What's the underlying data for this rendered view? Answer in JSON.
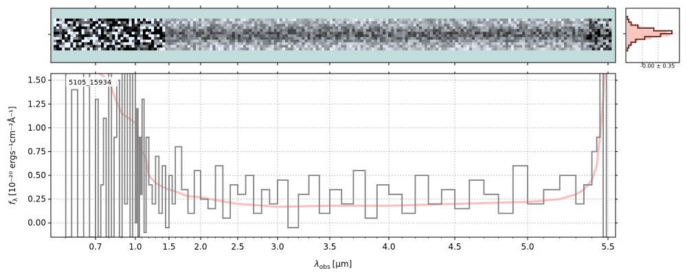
{
  "colors": {
    "twod_background": "#c3dcdc",
    "spectrum": "#808080",
    "model": "#ffb0b0",
    "model_dark": "#e88080",
    "histogram_light": "#f8b8b0",
    "histogram_dark": "#6b2a22",
    "grid": "#b0b0b0"
  },
  "chart_data": [
    {
      "type": "heatmap",
      "panel": "2D spectrum",
      "description_colormap": "bone-like, white to black on light teal background"
    },
    {
      "type": "bar",
      "panel": "cross-dispersion histogram",
      "annotation": "-0.00 ± 0.35",
      "legend": "",
      "series": [
        {
          "values": [
            0.02,
            0.05,
            0.1,
            0.25,
            0.6,
            1.0,
            0.75,
            0.4,
            0.2,
            0.1,
            0.05,
            0.02
          ]
        },
        {
          "values": [
            0.03,
            0.06,
            0.12,
            0.3,
            0.55,
            0.9,
            0.95,
            0.55,
            0.25,
            0.12,
            0.06,
            0.03
          ]
        }
      ]
    },
    {
      "type": "line",
      "title": "",
      "annotation": "5105_15934",
      "xlabel_main": "λ",
      "xlabel_sub": "obs",
      "xlabel_unit": "[μm]",
      "ylabel_main": "f",
      "ylabel_sub": "λ",
      "ylabel_unit": "[10⁻²⁰ ergs⁻¹cm⁻²Å⁻¹]",
      "xlim": [
        0.55,
        5.52
      ],
      "ylim": [
        -0.15,
        1.57
      ],
      "x_ticks": [
        {
          "value": 0.7,
          "label": "0.7"
        },
        {
          "value": 1.0,
          "label": "1.0"
        },
        {
          "value": 1.5,
          "label": "1.5"
        },
        {
          "value": 2.0,
          "label": "2.0"
        },
        {
          "value": 2.5,
          "label": "2.5"
        },
        {
          "value": 3.0,
          "label": "3.0"
        },
        {
          "value": 3.5,
          "label": "3.5"
        },
        {
          "value": 4.0,
          "label": "4.0"
        },
        {
          "value": 4.5,
          "label": "4.5"
        },
        {
          "value": 5.0,
          "label": "5.0"
        },
        {
          "value": 5.5,
          "label": "5.5"
        }
      ],
      "y_ticks": [
        {
          "value": 0.0,
          "label": "0.00"
        },
        {
          "value": 0.25,
          "label": "0.25"
        },
        {
          "value": 0.5,
          "label": "0.50"
        },
        {
          "value": 0.75,
          "label": "0.75"
        },
        {
          "value": 1.0,
          "label": "1.00"
        },
        {
          "value": 1.25,
          "label": "1.25"
        },
        {
          "value": 1.5,
          "label": "1.50"
        }
      ],
      "grid": true,
      "series": [
        {
          "style": "steps-gray",
          "x": [
            0.58,
            0.6,
            0.62,
            0.64,
            0.66,
            0.68,
            0.7,
            0.72,
            0.74,
            0.76,
            0.78,
            0.8,
            0.82,
            0.84,
            0.86,
            0.88,
            0.9,
            0.92,
            0.94,
            0.96,
            0.98,
            1.0,
            1.02,
            1.04,
            1.06,
            1.08,
            1.1,
            1.13,
            1.16,
            1.2,
            1.25,
            1.3,
            1.35,
            1.4,
            1.45,
            1.5,
            1.55,
            1.6,
            1.7,
            1.8,
            1.9,
            2.0,
            2.1,
            2.2,
            2.3,
            2.4,
            2.5,
            2.6,
            2.7,
            2.8,
            2.9,
            3.0,
            3.1,
            3.2,
            3.3,
            3.4,
            3.5,
            3.6,
            3.7,
            3.8,
            3.9,
            4.0,
            4.1,
            4.2,
            4.3,
            4.4,
            4.5,
            4.6,
            4.7,
            4.8,
            4.9,
            5.0,
            5.1,
            5.2,
            5.3,
            5.35,
            5.4,
            5.43,
            5.45,
            5.47,
            5.49
          ],
          "y": [
            1.6,
            -0.15,
            1.4,
            -0.15,
            1.6,
            -0.15,
            1.3,
            -0.15,
            0.4,
            1.1,
            -0.15,
            1.6,
            -0.15,
            0.9,
            1.5,
            -0.15,
            1.6,
            0.2,
            1.6,
            -0.15,
            1.6,
            0.0,
            1.2,
            -0.15,
            0.9,
            0.3,
            1.3,
            -0.1,
            0.9,
            0.4,
            0.2,
            0.7,
            0.1,
            0.6,
            -0.05,
            0.5,
            0.2,
            0.8,
            0.35,
            0.1,
            0.55,
            0.25,
            0.15,
            0.6,
            0.05,
            0.4,
            0.3,
            0.5,
            0.1,
            0.35,
            0.2,
            0.45,
            -0.05,
            0.3,
            0.5,
            0.1,
            0.35,
            0.2,
            0.55,
            0.05,
            0.4,
            0.3,
            0.1,
            0.5,
            0.2,
            0.35,
            0.15,
            0.45,
            0.3,
            0.1,
            0.6,
            0.2,
            0.35,
            0.5,
            0.2,
            0.4,
            0.75,
            0.9,
            1.6,
            -0.15,
            1.6
          ]
        },
        {
          "style": "model-pink",
          "x": [
            0.55,
            0.7,
            0.8,
            0.85,
            0.9,
            0.95,
            1.0,
            1.05,
            1.1,
            1.15,
            1.2,
            1.3,
            1.4,
            1.5,
            1.6,
            1.8,
            2.0,
            2.2,
            2.5,
            3.0,
            3.5,
            4.0,
            4.5,
            5.0,
            5.2,
            5.3,
            5.35,
            5.4,
            5.43,
            5.45,
            5.47,
            5.48
          ],
          "y": [
            1.6,
            1.6,
            1.5,
            1.3,
            1.15,
            1.1,
            1.05,
            0.85,
            0.75,
            0.7,
            0.5,
            0.42,
            0.38,
            0.35,
            0.33,
            0.28,
            0.27,
            0.24,
            0.2,
            0.17,
            0.18,
            0.18,
            0.2,
            0.22,
            0.25,
            0.3,
            0.35,
            0.45,
            0.6,
            0.9,
            1.3,
            1.6
          ]
        }
      ]
    }
  ]
}
